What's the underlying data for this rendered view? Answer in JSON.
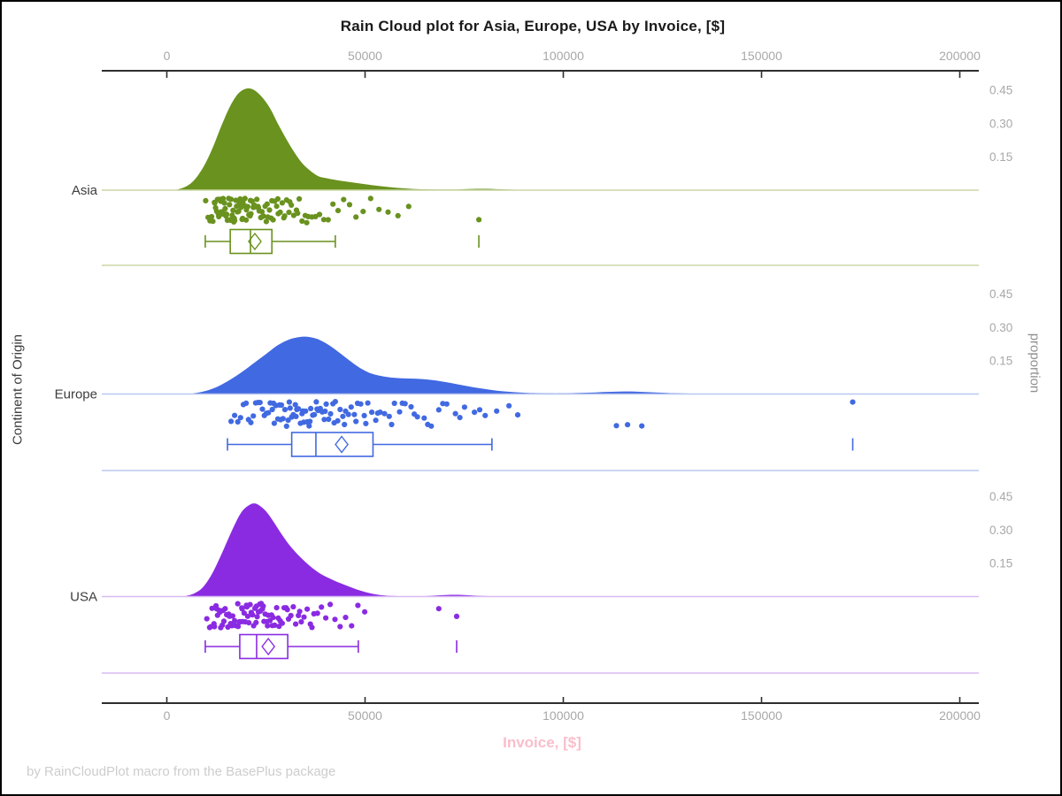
{
  "chart_data": {
    "type": "raincloud",
    "title": "Rain Cloud plot for Asia, Europe, USA by Invoice, [$]",
    "xlabel": "Invoice, [$]",
    "ylabel": "Continent of Origin",
    "ylabel_right": "proportion",
    "footer": "by RainCloudPlot macro from the BasePlus package",
    "x_ticks": [
      0,
      50000,
      100000,
      150000,
      200000
    ],
    "x_tick_labels": [
      "0",
      "50000",
      "100000",
      "150000",
      "200000"
    ],
    "x_range": [
      -16000,
      205000
    ],
    "proportion_ticks": [
      0.15,
      0.3,
      0.45
    ],
    "proportion_tick_labels": [
      "0.15",
      "0.30",
      "0.45"
    ],
    "axis_color": "#2e2e2e",
    "tick_label_color": "#a8a8a8",
    "category_label_color": "#3d3d3d",
    "xlabel_color": "#F9BECB",
    "footer_color": "#cdcdcd",
    "groups": [
      {
        "name": "Asia",
        "color": "#69921E",
        "tint": "#CBD7A7",
        "box": {
          "whisker_low": 9700,
          "q1": 16000,
          "median": 21100,
          "mean": 22200,
          "q3": 26500,
          "whisker_high": 42500,
          "far_outlier": 78700
        },
        "density_peak_proportion": 0.46,
        "density": [
          [
            0,
            0
          ],
          [
            2000,
            0.001
          ],
          [
            4000,
            0.01
          ],
          [
            6000,
            0.03
          ],
          [
            8000,
            0.07
          ],
          [
            10000,
            0.13
          ],
          [
            12000,
            0.21
          ],
          [
            14000,
            0.3
          ],
          [
            16000,
            0.38
          ],
          [
            18000,
            0.435
          ],
          [
            20000,
            0.458
          ],
          [
            22000,
            0.452
          ],
          [
            24000,
            0.42
          ],
          [
            26000,
            0.37
          ],
          [
            28000,
            0.3
          ],
          [
            30000,
            0.235
          ],
          [
            32000,
            0.175
          ],
          [
            34000,
            0.125
          ],
          [
            36000,
            0.09
          ],
          [
            38000,
            0.065
          ],
          [
            40000,
            0.055
          ],
          [
            44000,
            0.042
          ],
          [
            48000,
            0.032
          ],
          [
            52000,
            0.022
          ],
          [
            56000,
            0.014
          ],
          [
            60000,
            0.008
          ],
          [
            64000,
            0.004
          ],
          [
            68000,
            0.003
          ],
          [
            72000,
            0.003
          ],
          [
            76000,
            0.005
          ],
          [
            80000,
            0.006
          ],
          [
            84000,
            0.004
          ],
          [
            88000,
            0.002
          ],
          [
            92000,
            0.001
          ],
          [
            96000,
            0
          ],
          [
            205000,
            0
          ]
        ],
        "points": [
          9800,
          10400,
          10900,
          11300,
          11600,
          12000,
          12100,
          12300,
          12600,
          12800,
          13000,
          13100,
          13300,
          13600,
          13800,
          14000,
          14100,
          14200,
          14500,
          14700,
          14900,
          15000,
          15100,
          15300,
          15600,
          15800,
          16000,
          16100,
          16200,
          16500,
          16700,
          16900,
          17000,
          17100,
          17400,
          17600,
          17800,
          18000,
          18100,
          18300,
          18500,
          18700,
          19000,
          19100,
          19200,
          19400,
          19700,
          19900,
          20000,
          20100,
          20400,
          20700,
          21000,
          21100,
          21200,
          21500,
          21800,
          22000,
          22100,
          22400,
          22700,
          23000,
          23100,
          23300,
          23700,
          24000,
          24200,
          24400,
          24800,
          25100,
          25300,
          25500,
          25900,
          26300,
          26500,
          26800,
          27200,
          27700,
          28000,
          28100,
          28600,
          29100,
          29500,
          29700,
          30200,
          30800,
          31000,
          31400,
          32000,
          32700,
          33000,
          33400,
          34100,
          34900,
          35300,
          35700,
          36600,
          37500,
          38500,
          39600,
          40700,
          41900,
          43200,
          44600,
          46100,
          47700,
          49500,
          51400,
          53500,
          55800,
          58300,
          61000,
          78700
        ]
      },
      {
        "name": "Europe",
        "color": "#4169E1",
        "tint": "#BBC8F0",
        "box": {
          "whisker_low": 15300,
          "q1": 31500,
          "median": 37600,
          "mean": 44100,
          "q3": 52000,
          "whisker_high": 82000,
          "far_outlier": 173000
        },
        "density_peak_proportion": 0.26,
        "density": [
          [
            4000,
            0
          ],
          [
            7000,
            0.004
          ],
          [
            10000,
            0.015
          ],
          [
            13000,
            0.035
          ],
          [
            16000,
            0.065
          ],
          [
            19000,
            0.1
          ],
          [
            22000,
            0.14
          ],
          [
            25000,
            0.18
          ],
          [
            28000,
            0.22
          ],
          [
            31000,
            0.247
          ],
          [
            34000,
            0.258
          ],
          [
            36000,
            0.257
          ],
          [
            38000,
            0.248
          ],
          [
            40000,
            0.23
          ],
          [
            42000,
            0.207
          ],
          [
            44000,
            0.18
          ],
          [
            46000,
            0.152
          ],
          [
            48000,
            0.126
          ],
          [
            50000,
            0.105
          ],
          [
            52000,
            0.09
          ],
          [
            55000,
            0.078
          ],
          [
            58000,
            0.072
          ],
          [
            61000,
            0.07
          ],
          [
            64000,
            0.068
          ],
          [
            67000,
            0.063
          ],
          [
            70000,
            0.055
          ],
          [
            73000,
            0.045
          ],
          [
            76000,
            0.035
          ],
          [
            79000,
            0.026
          ],
          [
            82000,
            0.018
          ],
          [
            85000,
            0.012
          ],
          [
            88000,
            0.008
          ],
          [
            91000,
            0.005
          ],
          [
            94000,
            0.004
          ],
          [
            98000,
            0.003
          ],
          [
            102000,
            0.004
          ],
          [
            106000,
            0.006
          ],
          [
            110000,
            0.009
          ],
          [
            114000,
            0.011
          ],
          [
            118000,
            0.011
          ],
          [
            122000,
            0.008
          ],
          [
            126000,
            0.005
          ],
          [
            130000,
            0.003
          ],
          [
            134000,
            0.001
          ],
          [
            138000,
            0
          ],
          [
            205000,
            0
          ]
        ],
        "points": [
          16200,
          17100,
          17900,
          18600,
          19300,
          20000,
          20600,
          21200,
          21800,
          22400,
          23000,
          23500,
          24100,
          24600,
          25100,
          25600,
          26100,
          26600,
          26900,
          27100,
          27500,
          28000,
          28400,
          28700,
          28900,
          29300,
          29800,
          30200,
          30600,
          30900,
          31100,
          31500,
          31900,
          32400,
          32600,
          32800,
          33200,
          33700,
          34100,
          34300,
          34500,
          35000,
          35400,
          35900,
          36100,
          36300,
          36800,
          37200,
          37700,
          37900,
          38200,
          38700,
          39200,
          39700,
          39900,
          40200,
          40800,
          41300,
          41900,
          42200,
          42500,
          43100,
          43700,
          44400,
          44800,
          45100,
          45800,
          46500,
          47300,
          47700,
          48100,
          48900,
          49800,
          50200,
          50700,
          51700,
          52700,
          53200,
          53800,
          54900,
          56100,
          56700,
          57400,
          58700,
          59400,
          60100,
          61600,
          62400,
          63200,
          64900,
          65800,
          66700,
          68600,
          69600,
          70600,
          72800,
          73900,
          75100,
          77600,
          78900,
          80300,
          83200,
          86300,
          88500,
          113400,
          116200,
          119800,
          173000
        ]
      },
      {
        "name": "USA",
        "color": "#8A2BE2",
        "tint": "#D8BBF2",
        "box": {
          "whisker_low": 9700,
          "q1": 18400,
          "median": 22650,
          "mean": 25600,
          "q3": 30500,
          "whisker_high": 48300,
          "far_outlier": 73100
        },
        "density_peak_proportion": 0.42,
        "density": [
          [
            3000,
            0
          ],
          [
            5000,
            0.004
          ],
          [
            7000,
            0.015
          ],
          [
            9000,
            0.04
          ],
          [
            11000,
            0.09
          ],
          [
            13000,
            0.16
          ],
          [
            15000,
            0.24
          ],
          [
            17000,
            0.32
          ],
          [
            19000,
            0.385
          ],
          [
            21000,
            0.415
          ],
          [
            22000,
            0.42
          ],
          [
            23000,
            0.415
          ],
          [
            25000,
            0.385
          ],
          [
            27000,
            0.335
          ],
          [
            29000,
            0.28
          ],
          [
            31000,
            0.23
          ],
          [
            33000,
            0.19
          ],
          [
            35000,
            0.155
          ],
          [
            37000,
            0.125
          ],
          [
            39000,
            0.1
          ],
          [
            41000,
            0.082
          ],
          [
            43000,
            0.066
          ],
          [
            45000,
            0.052
          ],
          [
            47000,
            0.038
          ],
          [
            49000,
            0.026
          ],
          [
            51000,
            0.016
          ],
          [
            53000,
            0.009
          ],
          [
            55000,
            0.005
          ],
          [
            57000,
            0.003
          ],
          [
            60000,
            0.001
          ],
          [
            63000,
            0.001
          ],
          [
            66000,
            0.003
          ],
          [
            69000,
            0.006
          ],
          [
            72000,
            0.008
          ],
          [
            75000,
            0.007
          ],
          [
            78000,
            0.004
          ],
          [
            81000,
            0.002
          ],
          [
            84000,
            0.001
          ],
          [
            88000,
            0
          ],
          [
            205000,
            0
          ]
        ],
        "points": [
          10100,
          10800,
          11100,
          11400,
          11900,
          12000,
          12400,
          12600,
          12800,
          13200,
          13400,
          13600,
          14000,
          14200,
          14400,
          14700,
          15100,
          15400,
          15600,
          15800,
          16100,
          16400,
          16600,
          16800,
          17100,
          17400,
          17700,
          17900,
          18000,
          18300,
          18600,
          18900,
          19000,
          19200,
          19500,
          19800,
          20100,
          20200,
          20400,
          20700,
          21000,
          21300,
          21500,
          21600,
          21900,
          22200,
          22500,
          22600,
          22800,
          23100,
          23400,
          23600,
          23800,
          24100,
          24300,
          24500,
          24800,
          25200,
          25400,
          25600,
          26000,
          26400,
          26600,
          26800,
          27200,
          27700,
          28100,
          28300,
          28600,
          29100,
          29600,
          30100,
          30400,
          30700,
          31300,
          31900,
          32500,
          33200,
          33500,
          33900,
          34600,
          35400,
          36200,
          36600,
          37100,
          38000,
          39000,
          40100,
          41200,
          42400,
          43700,
          45100,
          46600,
          48200,
          49900,
          68600,
          73100
        ]
      }
    ]
  }
}
